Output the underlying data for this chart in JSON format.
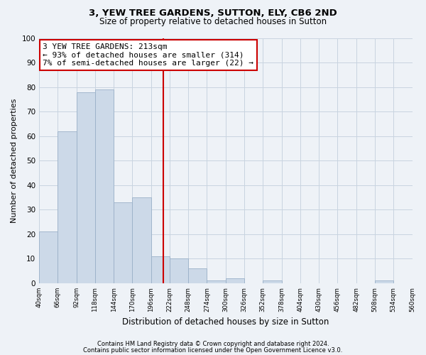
{
  "title": "3, YEW TREE GARDENS, SUTTON, ELY, CB6 2ND",
  "subtitle": "Size of property relative to detached houses in Sutton",
  "xlabel": "Distribution of detached houses by size in Sutton",
  "ylabel": "Number of detached properties",
  "bar_color": "#ccd9e8",
  "bar_edge_color": "#9ab0c8",
  "grid_color": "#c8d4e0",
  "bg_color": "#eef2f7",
  "fig_bg_color": "#eef2f7",
  "bin_edges": [
    40,
    66,
    92,
    118,
    144,
    170,
    196,
    222,
    248,
    274,
    300,
    326,
    352,
    378,
    404,
    430,
    456,
    482,
    508,
    534,
    560
  ],
  "bin_counts": [
    21,
    62,
    78,
    79,
    33,
    35,
    11,
    10,
    6,
    1,
    2,
    0,
    1,
    0,
    0,
    0,
    0,
    0,
    1,
    0
  ],
  "property_size": 213,
  "vline_color": "#cc0000",
  "ann_title": "3 YEW TREE GARDENS: 213sqm",
  "ann_line1": "← 93% of detached houses are smaller (314)",
  "ann_line2": "7% of semi-detached houses are larger (22) →",
  "ann_box_facecolor": "#ffffff",
  "ann_box_edgecolor": "#cc0000",
  "ylim": [
    0,
    100
  ],
  "yticks": [
    0,
    10,
    20,
    30,
    40,
    50,
    60,
    70,
    80,
    90,
    100
  ],
  "tick_labels": [
    "40sqm",
    "66sqm",
    "92sqm",
    "118sqm",
    "144sqm",
    "170sqm",
    "196sqm",
    "222sqm",
    "248sqm",
    "274sqm",
    "300sqm",
    "326sqm",
    "352sqm",
    "378sqm",
    "404sqm",
    "430sqm",
    "456sqm",
    "482sqm",
    "508sqm",
    "534sqm",
    "560sqm"
  ],
  "footnote1": "Contains HM Land Registry data © Crown copyright and database right 2024.",
  "footnote2": "Contains public sector information licensed under the Open Government Licence v3.0."
}
